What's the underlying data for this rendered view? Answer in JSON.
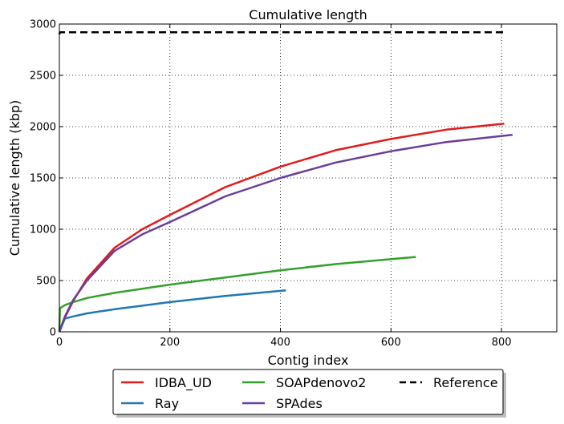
{
  "chart_data": {
    "type": "line",
    "title": "Cumulative length",
    "xlabel": "Contig index",
    "ylabel": "Cumulative length (kbp)",
    "xlim": [
      0,
      900
    ],
    "ylim": [
      0,
      3000
    ],
    "xticks": [
      0,
      200,
      400,
      600,
      800
    ],
    "yticks": [
      0,
      500,
      1000,
      1500,
      2000,
      2500,
      3000
    ],
    "grid": true,
    "legend_position": "bottom, outside plot",
    "series": [
      {
        "name": "IDBA_UD",
        "color": "#e31a1c",
        "style": "solid",
        "x": [
          0,
          10,
          25,
          50,
          100,
          150,
          200,
          300,
          400,
          500,
          600,
          700,
          805
        ],
        "y": [
          0,
          140,
          300,
          520,
          820,
          1000,
          1140,
          1410,
          1610,
          1770,
          1880,
          1970,
          2030
        ]
      },
      {
        "name": "Ray",
        "color": "#1f78b4",
        "style": "solid",
        "x": [
          0,
          10,
          25,
          50,
          100,
          150,
          200,
          300,
          410
        ],
        "y": [
          0,
          130,
          150,
          180,
          220,
          255,
          290,
          350,
          405
        ]
      },
      {
        "name": "SOAPdenovo2",
        "color": "#33a02c",
        "style": "solid",
        "x": [
          0,
          1,
          10,
          25,
          50,
          100,
          200,
          300,
          400,
          500,
          645
        ],
        "y": [
          0,
          230,
          260,
          290,
          330,
          380,
          460,
          530,
          600,
          660,
          730
        ]
      },
      {
        "name": "SPAdes",
        "color": "#6a3d9a",
        "style": "solid",
        "x": [
          0,
          10,
          25,
          50,
          100,
          150,
          200,
          300,
          400,
          500,
          600,
          700,
          820
        ],
        "y": [
          0,
          150,
          310,
          500,
          790,
          950,
          1070,
          1320,
          1500,
          1650,
          1760,
          1850,
          1920
        ]
      },
      {
        "name": "Reference",
        "color": "#000000",
        "style": "dashed",
        "x": [
          0,
          1,
          805
        ],
        "y": [
          2900,
          2920,
          2920
        ]
      }
    ]
  }
}
